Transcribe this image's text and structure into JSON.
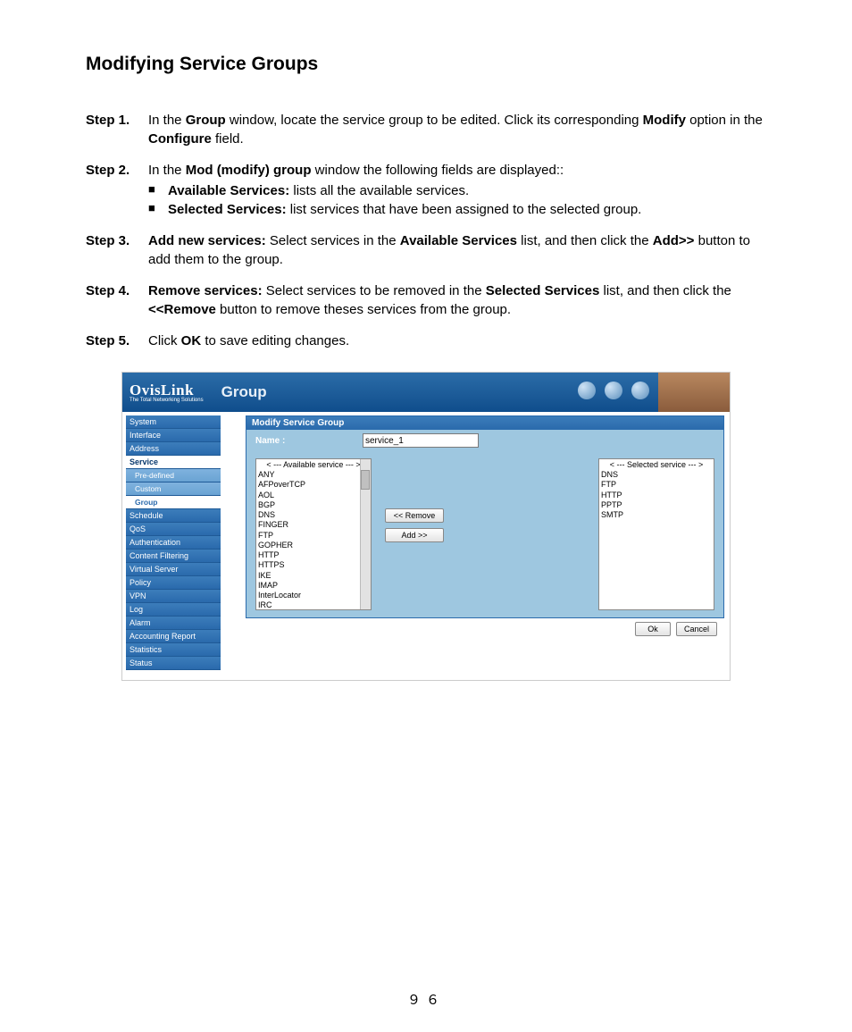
{
  "doc": {
    "title": "Modifying Service Groups",
    "page_number": "９６",
    "steps": {
      "s1": {
        "label": "Step 1.",
        "pre": " In the ",
        "b1": "Group",
        "mid1": " window, locate the service group to be edited.    Click its corresponding ",
        "b2": "Modify",
        "mid2": " option in the ",
        "b3": "Configure",
        "end": " field."
      },
      "s2": {
        "label": "Step 2.",
        "pre": "In the ",
        "b1": "Mod (modify) group",
        "end": " window the following fields are displayed::",
        "bul1_b": "Available Services:",
        "bul1_t": " lists all the available services.",
        "bul2_b": "Selected Services:",
        "bul2_t": " list services that have been assigned to the selected group."
      },
      "s3": {
        "label": "Step 3.",
        "b1": "Add new services:",
        "t1": " Select services in the ",
        "b2": "Available Services",
        "t2": " list, and then click the ",
        "b3": "Add>>",
        "t3": " button to add them to the group."
      },
      "s4": {
        "label": "Step 4.",
        "b1": "Remove services:",
        "t1": " Select services to be removed in the ",
        "b2": "Selected Services",
        "t2": " list, and then click the ",
        "b3": "<<Remove",
        "t3": " button to remove theses services from the group."
      },
      "s5": {
        "label": "Step 5.",
        "t1": "Click ",
        "b1": "OK",
        "t2": "    to save editing changes."
      }
    }
  },
  "ui": {
    "brand": "OvisLink",
    "brand_sub": "The Total Networking Solutions",
    "breadcrumb": "Group",
    "sidebar": [
      {
        "label": "System",
        "type": "top"
      },
      {
        "label": "Interface",
        "type": "top"
      },
      {
        "label": "Address",
        "type": "top"
      },
      {
        "label": "Service",
        "type": "top",
        "active": true
      },
      {
        "label": "Pre-defined",
        "type": "sub"
      },
      {
        "label": "Custom",
        "type": "sub"
      },
      {
        "label": "Group",
        "type": "sub",
        "active": true
      },
      {
        "label": "Schedule",
        "type": "top"
      },
      {
        "label": "QoS",
        "type": "top"
      },
      {
        "label": "Authentication",
        "type": "top"
      },
      {
        "label": "Content Filtering",
        "type": "top"
      },
      {
        "label": "Virtual Server",
        "type": "top"
      },
      {
        "label": "Policy",
        "type": "top"
      },
      {
        "label": "VPN",
        "type": "top"
      },
      {
        "label": "Log",
        "type": "top"
      },
      {
        "label": "Alarm",
        "type": "top"
      },
      {
        "label": "Accounting Report",
        "type": "top"
      },
      {
        "label": "Statistics",
        "type": "top"
      },
      {
        "label": "Status",
        "type": "top"
      }
    ],
    "panel_title": "Modify Service Group",
    "name_label": "Name :",
    "name_value": "service_1",
    "available_header": "< --- Available service --- >",
    "available_items": [
      "ANY",
      "AFPoverTCP",
      "AOL",
      "BGP",
      "DNS",
      "FINGER",
      "FTP",
      "GOPHER",
      "HTTP",
      "HTTPS",
      "IKE",
      "IMAP",
      "InterLocator",
      "IRC"
    ],
    "selected_header": "< --- Selected service --- >",
    "selected_items": [
      "DNS",
      "FTP",
      "HTTP",
      "PPTP",
      "SMTP"
    ],
    "btn_remove": "<< Remove",
    "btn_add": "Add  >>",
    "btn_ok": "Ok",
    "btn_cancel": "Cancel"
  }
}
